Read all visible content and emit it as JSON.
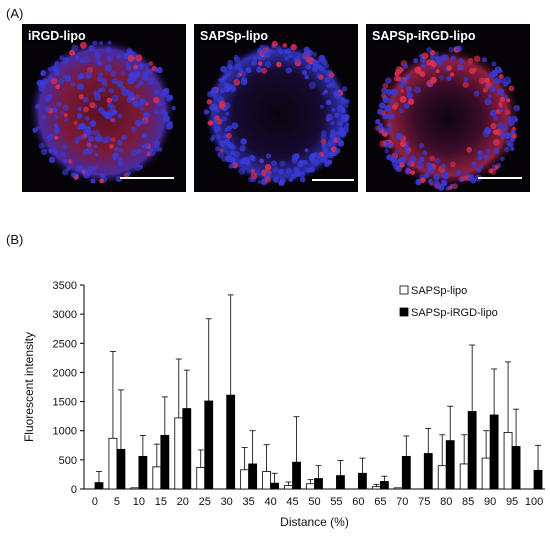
{
  "panel_a_label": "(A)",
  "panel_b_label": "(B)",
  "micrographs": [
    {
      "caption": "iRGD-lipo"
    },
    {
      "caption": "SAPSp-lipo"
    },
    {
      "caption": "SAPSp-iRGD-lipo"
    }
  ],
  "colors": {
    "nuclei": "#3a3ad8",
    "liposome": "#e0304a",
    "background": "#050208",
    "series_open": "#ffffff",
    "series_filled": "#000000"
  },
  "chart_data": {
    "type": "bar",
    "xlabel": "Distance (%)",
    "ylabel": "Fluorescent intensity",
    "ylim": [
      0,
      3500
    ],
    "yticks": [
      0,
      500,
      1000,
      1500,
      2000,
      2500,
      3000,
      3500
    ],
    "categories": [
      "0",
      "5",
      "10",
      "15",
      "20",
      "25",
      "30",
      "35",
      "40",
      "45",
      "50",
      "55",
      "60",
      "65",
      "70",
      "75",
      "80",
      "85",
      "90",
      "95",
      "100"
    ],
    "series": [
      {
        "name": "SAPSp-lipo",
        "values": [
          0,
          870,
          20,
          380,
          1220,
          370,
          0,
          330,
          300,
          60,
          90,
          0,
          0,
          40,
          20,
          0,
          400,
          430,
          530,
          970,
          0
        ],
        "errors": [
          0,
          1490,
          0,
          390,
          1010,
          300,
          0,
          380,
          460,
          60,
          70,
          0,
          0,
          40,
          0,
          0,
          530,
          500,
          470,
          1210,
          0
        ]
      },
      {
        "name": "SAPSp-iRGD-lipo",
        "values": [
          110,
          680,
          560,
          920,
          1380,
          1510,
          1610,
          430,
          100,
          460,
          180,
          230,
          270,
          130,
          560,
          610,
          830,
          1330,
          1270,
          730,
          320
        ],
        "errors": [
          190,
          1020,
          360,
          660,
          660,
          1410,
          1720,
          570,
          170,
          780,
          220,
          260,
          260,
          90,
          350,
          430,
          590,
          1140,
          790,
          640,
          430
        ]
      }
    ],
    "legend_position": "top-right",
    "grid": false
  }
}
